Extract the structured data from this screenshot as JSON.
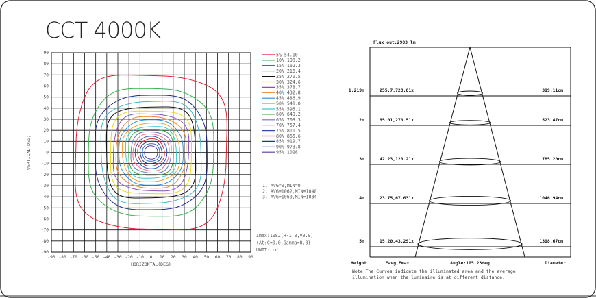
{
  "title": "CCT 4000K",
  "chart_data": [
    {
      "type": "contour",
      "xlabel": "HORIZONTAL(DEG)",
      "ylabel": "VERTICAL(DEG)",
      "xlim": [
        -90,
        90
      ],
      "ylim": [
        -90,
        90
      ],
      "xticks": [
        -90,
        -80,
        -70,
        -60,
        -50,
        -40,
        -30,
        -20,
        -10,
        0,
        10,
        20,
        30,
        40,
        50,
        60,
        70,
        80,
        90
      ],
      "yticks": [
        90,
        80,
        70,
        60,
        50,
        40,
        30,
        20,
        10,
        0,
        -10,
        -20,
        -30,
        -40,
        -50,
        -60,
        -70,
        -80,
        -90
      ],
      "grid": true,
      "legend_position": "right",
      "series": [
        {
          "name": "5%",
          "value": "54.10",
          "color": "#e8192c"
        },
        {
          "name": "10%",
          "value": "108.2",
          "color": "#36b24a"
        },
        {
          "name": "15%",
          "value": "162.3",
          "color": "#1e2a8c"
        },
        {
          "name": "20%",
          "value": "216.4",
          "color": "#3fb3c9"
        },
        {
          "name": "25%",
          "value": "270.5",
          "color": "#111111"
        },
        {
          "name": "30%",
          "value": "324.6",
          "color": "#e8d81a"
        },
        {
          "name": "35%",
          "value": "378.7",
          "color": "#8a4fb8"
        },
        {
          "name": "40%",
          "value": "432.8",
          "color": "#e8862a"
        },
        {
          "name": "45%",
          "value": "486.9",
          "color": "#2a8fd8"
        },
        {
          "name": "50%",
          "value": "541.0",
          "color": "#f0a030"
        },
        {
          "name": "55%",
          "value": "595.1",
          "color": "#3fc9c9"
        },
        {
          "name": "60%",
          "value": "649.2",
          "color": "#2fa63a"
        },
        {
          "name": "65%",
          "value": "703.3",
          "color": "#7070c8"
        },
        {
          "name": "70%",
          "value": "757.4",
          "color": "#f06a8a"
        },
        {
          "name": "75%",
          "value": "811.5",
          "color": "#2a4fb0"
        },
        {
          "name": "80%",
          "value": "865.6",
          "color": "#d03030"
        },
        {
          "name": "85%",
          "value": "919.7",
          "color": "#1b3a8a"
        },
        {
          "name": "90%",
          "value": "973.8",
          "color": "#2a6fd0"
        },
        {
          "name": "95%",
          "value": "1028",
          "color": "#5a3aa0"
        }
      ],
      "notes": [
        "1. AVG=0,MIN=0",
        "2. AVG=1062,MIN=1040",
        "3. AVG=1060,MIN=1034"
      ],
      "imax": [
        "Imax:1082(H-1.0,V0.0)",
        " (At:C=0.0,Gamma=0.0)",
        "UNIT: cd"
      ]
    },
    {
      "type": "table",
      "title": "Flux out:2903 lm",
      "columns": [
        "Height",
        "Eavg,Emax",
        "Angle:105.23deg",
        "Diameter"
      ],
      "rows": [
        {
          "height": "1.219m",
          "illum": "255.7,728.01x",
          "diameter": "319.11cm"
        },
        {
          "height": "2m",
          "illum": "95.01,270.51x",
          "diameter": "523.47cm"
        },
        {
          "height": "3m",
          "illum": "42.23,120.21x",
          "diameter": "785.20cm"
        },
        {
          "height": "4m",
          "illum": "23.75,67.631x",
          "diameter": "1046.94cm"
        },
        {
          "height": "5m",
          "illum": "15.20,43.291x",
          "diameter": "1308.67cm"
        }
      ],
      "note_lines": [
        "Note:The Curves indicate the illuminated area and the average",
        "     illumination when the luminaire is at different distance."
      ]
    }
  ]
}
